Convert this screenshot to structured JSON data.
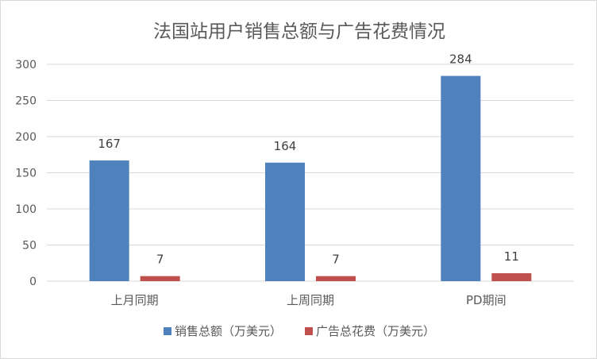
{
  "chart_data": {
    "type": "bar",
    "title": "法国站用户销售总额与广告花费情况",
    "xlabel": "",
    "ylabel": "",
    "categories": [
      "上月同期",
      "上周同期",
      "PD期间"
    ],
    "series": [
      {
        "name": "销售总额（万美元）",
        "values": [
          167,
          164,
          284
        ],
        "color": "#4f81bd"
      },
      {
        "name": "广告总花费（万美元）",
        "values": [
          7,
          7,
          11
        ],
        "color": "#c0504d"
      }
    ],
    "ylim": [
      0,
      300
    ],
    "yticks": [
      "0",
      "50",
      "100",
      "150",
      "200",
      "250",
      "300"
    ],
    "grid": true,
    "legend": "bottom",
    "data_labels": true
  }
}
